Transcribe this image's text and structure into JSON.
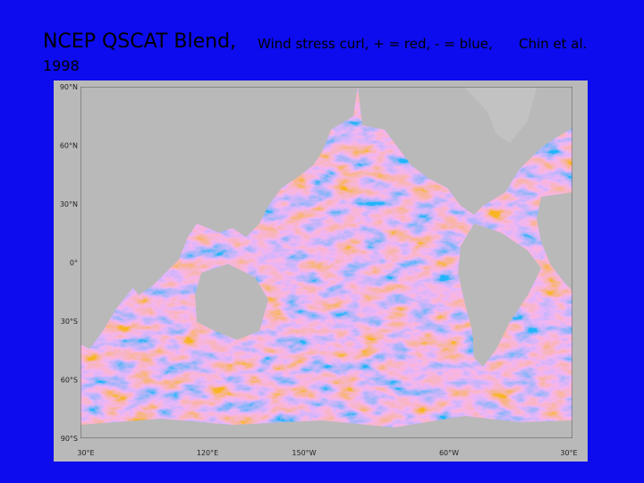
{
  "header": {
    "title": "NCEP QSCAT Blend,",
    "subtitle": "Wind stress curl, + = red, - = blue,",
    "credit": "Chin et al.",
    "year": "1998"
  },
  "map": {
    "lat_labels": [
      "90°N",
      "60°N",
      "30°N",
      "0°",
      "30°S",
      "60°S",
      "90°S"
    ],
    "lon_labels": [
      "30°E",
      "120°E",
      "150°W",
      "60°W",
      "30°E"
    ]
  }
}
